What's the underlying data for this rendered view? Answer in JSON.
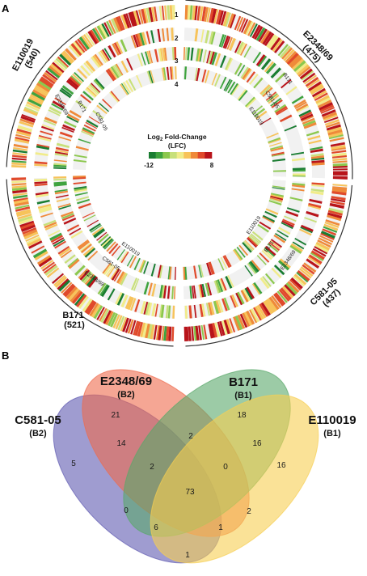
{
  "panel_a": {
    "letter": "A",
    "tracks": [
      "1",
      "2",
      "3",
      "4"
    ],
    "strains": [
      {
        "name": "E2348/69",
        "count": "(475)"
      },
      {
        "name": "C581-05",
        "count": "(437)"
      },
      {
        "name": "B171",
        "count": "(521)"
      },
      {
        "name": "E110019",
        "count": "(540)"
      }
    ],
    "inner_labels": {
      "e2348_block": [
        "B171",
        "C581-05",
        "E110019"
      ],
      "c581_block": [
        "E110019",
        "B171",
        "E2348/69"
      ],
      "b171_block": [
        "E110019",
        "C581-05",
        "E2348/69"
      ],
      "e110019_block": [
        "E2348/69",
        "B171",
        "C581-05"
      ]
    },
    "legend": {
      "title_line1": "Log",
      "title_sub": "2",
      "title_line1_rest": " Fold-Change",
      "title_line2": "(LFC)",
      "min": "-12",
      "max": "8",
      "colors": [
        "#1a7d32",
        "#3fa33f",
        "#8cc84e",
        "#c8e07a",
        "#f1ec8a",
        "#f7c35a",
        "#ef8a3a",
        "#e04a2b",
        "#b8141b"
      ]
    }
  },
  "panel_b": {
    "letter": "B",
    "sets": [
      {
        "name": "C581-05",
        "group": "(B2)",
        "color": "#5f5ab0"
      },
      {
        "name": "E2348/69",
        "group": "(B2)",
        "color": "#ee6b4d"
      },
      {
        "name": "B171",
        "group": "(B1)",
        "color": "#5aa86a"
      },
      {
        "name": "E110019",
        "group": "(B1)",
        "color": "#f6cf52"
      }
    ],
    "regions": {
      "c581_only": "5",
      "e2348_only": "21",
      "b171_only": "18",
      "e110019_only": "16",
      "c581_e2348": "14",
      "e2348_b171": "2",
      "b171_e110019": "16",
      "c581_e2348_b171": "2",
      "e2348_b171_e110019": "0",
      "all_four": "73",
      "c581_b171": "0",
      "c581_b171_e110019": "6",
      "c581_e2348_e110019": "1",
      "e2348_e110019": "2",
      "c581_e110019": "1"
    }
  }
}
